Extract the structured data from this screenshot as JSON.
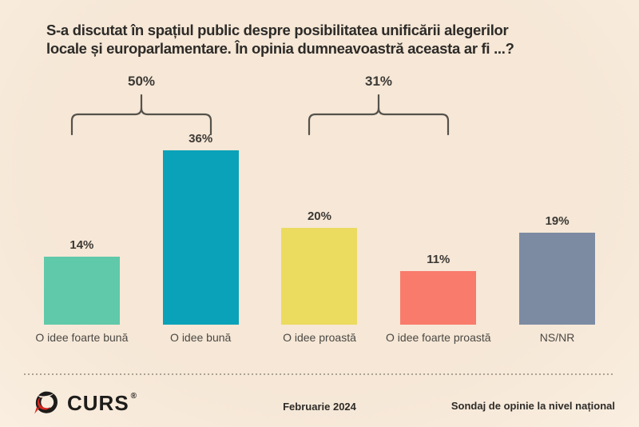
{
  "title": {
    "line1": "S-a discutat în spațiul public despre posibilitatea unificării alegerilor",
    "line2": "locale și europarlamentare. În opinia dumneavoastră aceasta ar fi ...?"
  },
  "chart_data": {
    "type": "bar",
    "title": "S-a discutat în spațiul public despre posibilitatea unificării alegerilor locale și europarlamentare. În opinia dumneavoastră aceasta ar fi ...?",
    "categories": [
      "O idee foarte bună",
      "O idee bună",
      "O idee proastă",
      "O idee foarte proastă",
      "NS/NR"
    ],
    "values": [
      14,
      36,
      20,
      11,
      19
    ],
    "unit": "%",
    "ylim": [
      0,
      40
    ],
    "grid": false,
    "legend": "none",
    "bars": [
      {
        "label": "O idee foarte bună",
        "value": 14,
        "value_label": "14%",
        "color": "#60c9a9"
      },
      {
        "label": "O idee bună",
        "value": 36,
        "value_label": "36%",
        "color": "#0aa2b8"
      },
      {
        "label": "O idee proastă",
        "value": 20,
        "value_label": "20%",
        "color": "#ebdb5f"
      },
      {
        "label": "O idee foarte proastă",
        "value": 11,
        "value_label": "11%",
        "color": "#f97b6c"
      },
      {
        "label": "NS/NR",
        "value": 19,
        "value_label": "19%",
        "color": "#7c8ba2"
      }
    ],
    "brackets": [
      {
        "label": "50%",
        "spans": [
          "O idee foarte bună",
          "O idee bună"
        ]
      },
      {
        "label": "31%",
        "spans": [
          "O idee proastă",
          "O idee foarte proastă"
        ]
      }
    ]
  },
  "footer": {
    "brand": "CURS",
    "registered_mark": "®",
    "date": "Februarie 2024",
    "note": "Sondaj de opinie la nivel național"
  },
  "colors": {
    "background": "#f7e9d9",
    "text": "#2d2b28",
    "bracket_line": "#55524c",
    "logo_black": "#1d1c1a",
    "logo_red": "#d7281f"
  }
}
